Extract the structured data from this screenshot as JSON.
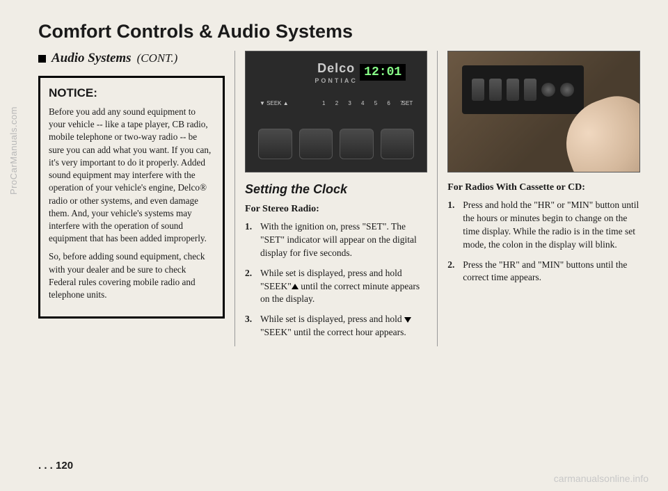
{
  "watermark_side": "ProCarManuals.com",
  "watermark_bottom": "carmanualsonline.info",
  "main_title": "Comfort Controls & Audio Systems",
  "section_header": "Audio Systems",
  "cont": "(CONT.)",
  "notice": {
    "title": "NOTICE:",
    "para1": "Before you add any sound equipment to your vehicle -- like a tape player, CB radio, mobile telephone or two-way radio -- be sure you can add what you want. If you can, it's very important to do it properly. Added sound equipment may interfere with the operation of your vehicle's engine, Delco® radio or other systems, and even damage them. And, your vehicle's systems may interfere with the operation of sound equipment that has been added improperly.",
    "para2": "So, before adding sound equipment, check with your dealer and be sure to check Federal rules covering mobile radio and telephone units."
  },
  "radio": {
    "brand": "Delco",
    "sub": "PONTIAC",
    "time": "12:01",
    "seek": "▼ SEEK ▲",
    "nums": "1  2  3  4  5  6  7",
    "set": "SET"
  },
  "col2": {
    "heading": "Setting the Clock",
    "sub": "For Stereo Radio:",
    "steps": [
      "With the ignition on, press \"SET\". The \"SET\" indicator will appear on the digital display for five seconds.",
      "While set is displayed, press and hold \"SEEK\"▲ until the correct minute appears on the display.",
      "While set is displayed, press and hold ▼ \"SEEK\" until the correct hour appears."
    ]
  },
  "col3": {
    "sub": "For Radios With Cassette or CD:",
    "steps": [
      "Press and hold the \"HR\" or \"MIN\" button until the hours or minutes begin to change on the time display. While the radio is in the time set mode, the colon in the display will blink.",
      "Press the \"HR\" and \"MIN\" buttons until the correct time appears."
    ]
  },
  "page_num": ". . . 120"
}
